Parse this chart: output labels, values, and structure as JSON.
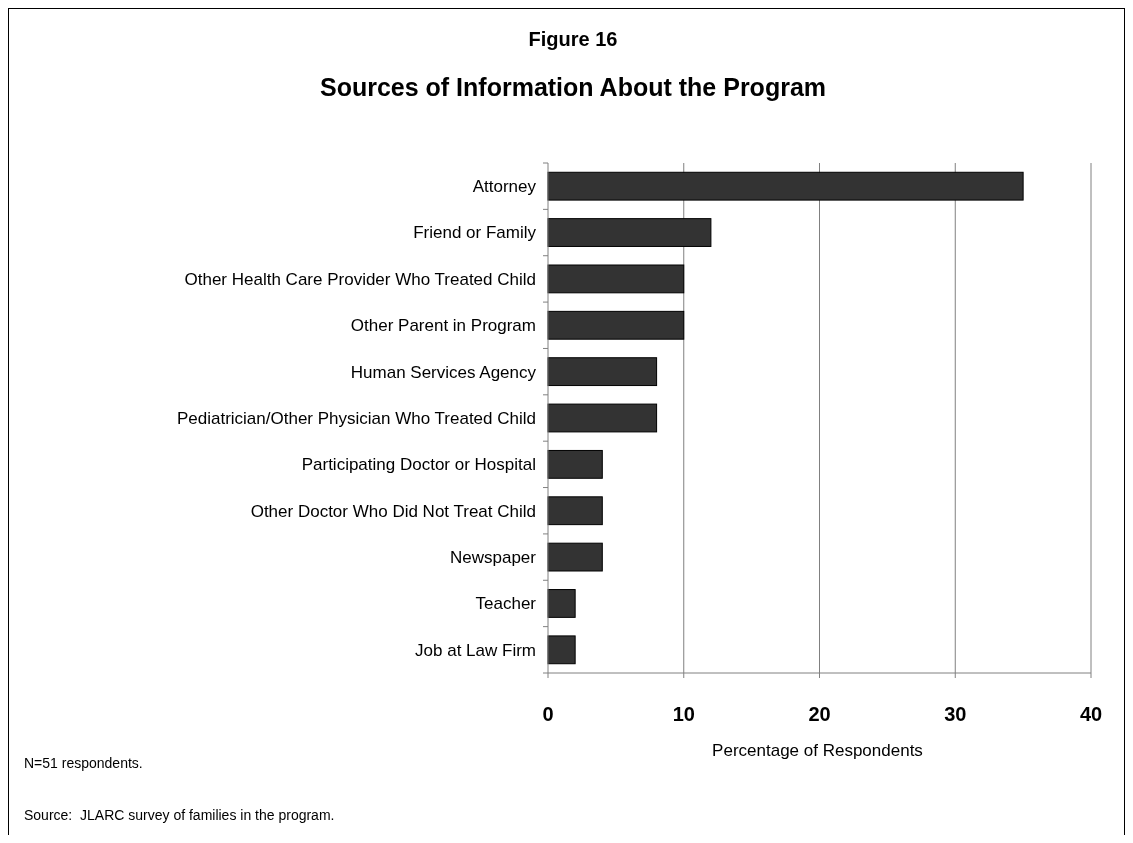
{
  "chart_data": {
    "type": "bar",
    "orientation": "horizontal",
    "title": "Figure 16",
    "subtitle": "Sources of Information About the Program",
    "categories": [
      "Attorney",
      "Friend or Family",
      "Other Health Care Provider Who Treated Child",
      "Other Parent in Program",
      "Human Services Agency",
      "Pediatrician/Other Physician Who Treated Child",
      "Participating Doctor or Hospital",
      "Other Doctor Who Did Not Treat Child",
      "Newspaper",
      "Teacher",
      "Job at Law Firm"
    ],
    "values": [
      35,
      12,
      10,
      10,
      8,
      8,
      4,
      4,
      4,
      2,
      2
    ],
    "color": "#333333",
    "xlim": [
      0,
      40
    ],
    "xticks": [
      0,
      10,
      20,
      30,
      40
    ],
    "xlabel": "Percentage of Respondents",
    "grid": "x",
    "annotations": [
      "N=51 respondents.",
      "Source:  JLARC survey of families in the program."
    ]
  }
}
